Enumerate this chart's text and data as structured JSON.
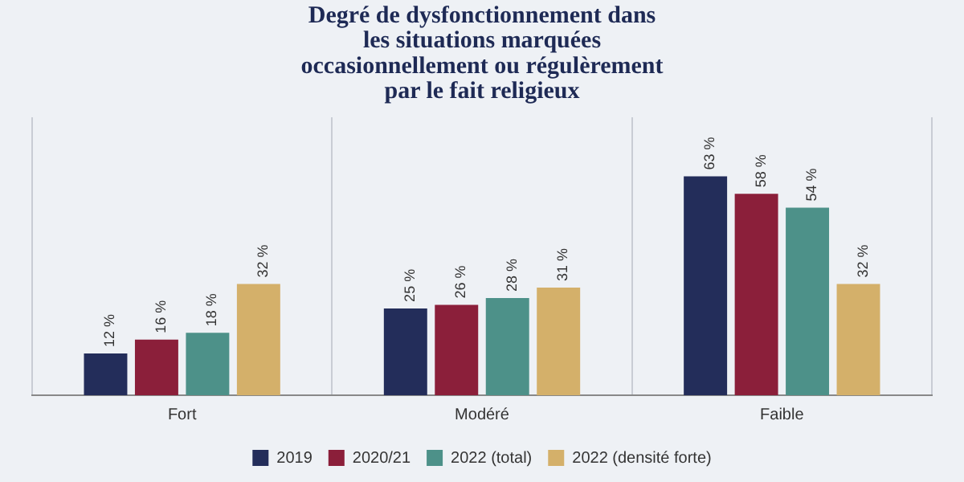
{
  "chart_data": {
    "type": "bar",
    "title": "Degré de dysfonctionnement dans\nles situations marquées\noccasionnellement ou régulèrement\npar le fait religieux",
    "categories": [
      "Fort",
      "Modéré",
      "Faible"
    ],
    "series": [
      {
        "name": "2019",
        "color": "#232d5a",
        "values": [
          12,
          25,
          63
        ],
        "value_labels": [
          "12 %",
          "25 %",
          "63 %"
        ]
      },
      {
        "name": "2020/21",
        "color": "#8b1f3a",
        "values": [
          16,
          26,
          58
        ],
        "value_labels": [
          "16 %",
          "26 %",
          "58 %"
        ]
      },
      {
        "name": "2022 (total)",
        "color": "#4d9189",
        "values": [
          18,
          28,
          54
        ],
        "value_labels": [
          "18 %",
          "28 %",
          "54 %"
        ]
      },
      {
        "name": "2022 (densité forte)",
        "color": "#d4b06a",
        "values": [
          32,
          31,
          32
        ],
        "value_labels": [
          "32 %",
          "31 %",
          "32 %"
        ]
      }
    ],
    "grid": "x",
    "legend": "bottom"
  }
}
